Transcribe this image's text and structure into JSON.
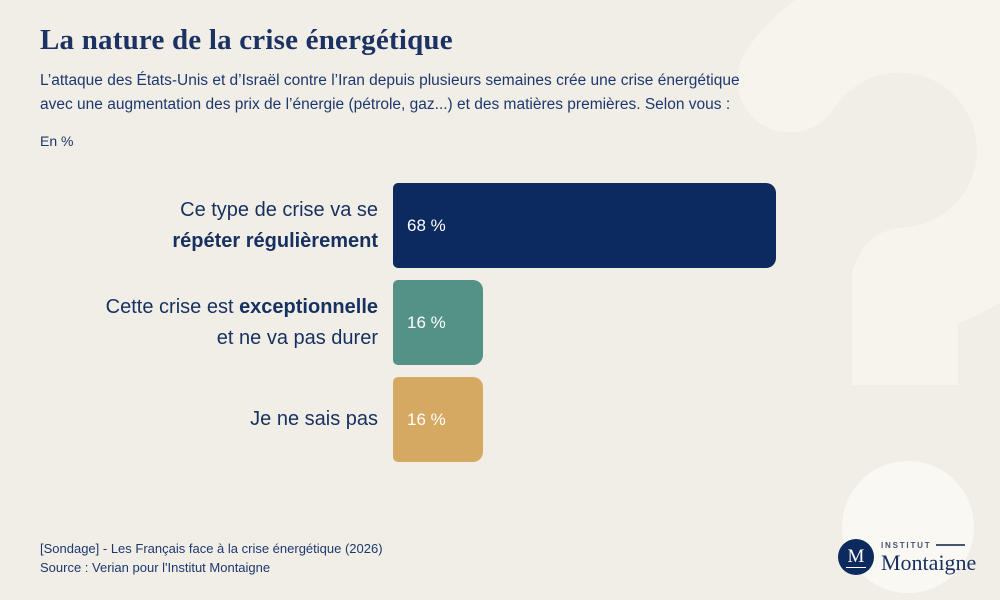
{
  "page": {
    "title": "La nature de la crise énergétique",
    "subtitle_lines": [
      "L’attaque des États-Unis et d’Israël contre l’Iran depuis plusieurs semaines crée une crise énergétique",
      "avec une augmentation des prix de l’énergie (pétrole, gaz...) et des matières premières. Selon vous :"
    ],
    "unit_label": "En %"
  },
  "chart_data": {
    "type": "bar",
    "orientation": "horizontal",
    "title": "La nature de la crise énergétique",
    "unit": "%",
    "xlim": [
      0,
      100
    ],
    "grid": false,
    "legend": "none",
    "categories": [
      "Ce type de crise va se répéter régulièrement",
      "Cette crise est exceptionnelle et ne va pas durer",
      "Je ne sais pas"
    ],
    "values": [
      68,
      16,
      16
    ],
    "rows": [
      {
        "label_lines": [
          [
            {
              "text": "Ce type de crise va se",
              "bold": false
            }
          ],
          [
            {
              "text": "répéter régulièrement",
              "bold": true
            }
          ]
        ],
        "value": 68,
        "value_label": "68 %",
        "bar_color": "#0d2a5e",
        "value_color": "#ffffff"
      },
      {
        "label_lines": [
          [
            {
              "text": "Cette crise est ",
              "bold": false
            },
            {
              "text": "exceptionnelle",
              "bold": true
            }
          ],
          [
            {
              "text": "et ne va pas durer",
              "bold": false
            }
          ]
        ],
        "value": 16,
        "value_label": "16 %",
        "bar_color": "#549288",
        "value_color": "#ffffff"
      },
      {
        "label_lines": [
          [
            {
              "text": "Je ne sais pas",
              "bold": false
            }
          ]
        ],
        "value": 16,
        "value_label": "16 %",
        "bar_color": "#d5a962",
        "value_color": "#ffffff"
      }
    ]
  },
  "footer": {
    "line1": "[Sondage] - Les Français face à la crise énergétique (2026)",
    "line2": "Source : Verian pour l'Institut Montaigne"
  },
  "logo": {
    "monogram": "M",
    "institut": "INSTITUT",
    "montaigne": "Montaigne"
  },
  "colors": {
    "background": "#f1eee7",
    "navy": "#0d2a5e",
    "teal": "#549288",
    "gold": "#d5a962",
    "text_navy": "#1c3366",
    "watermark_curve": "#f7f4ed",
    "watermark_dot": "#faf8f3"
  }
}
